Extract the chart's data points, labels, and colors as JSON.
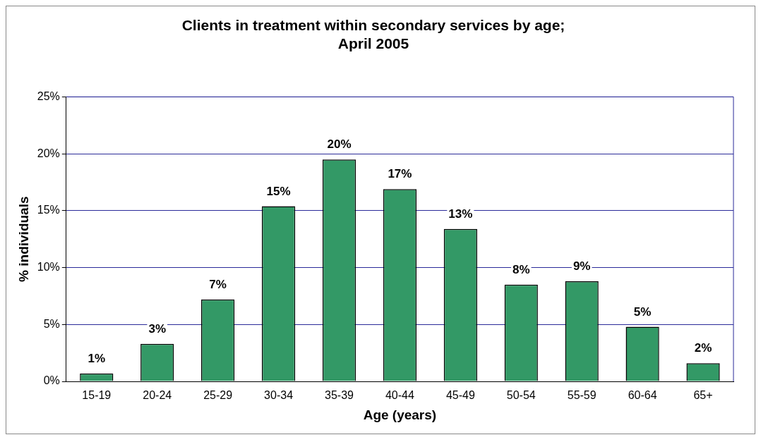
{
  "chart_data": {
    "type": "bar",
    "title": [
      "Clients in treatment within secondary services by age;",
      "April 2005"
    ],
    "xlabel": "Age (years)",
    "ylabel": "% individuals",
    "categories": [
      "15-19",
      "20-24",
      "25-29",
      "30-34",
      "35-39",
      "40-44",
      "45-49",
      "50-54",
      "55-59",
      "60-64",
      "65+"
    ],
    "values": [
      0.7,
      3.3,
      7.2,
      15.4,
      19.5,
      16.9,
      13.4,
      8.5,
      8.8,
      4.8,
      1.6
    ],
    "value_labels": [
      "1%",
      "3%",
      "7%",
      "15%",
      "20%",
      "17%",
      "13%",
      "8%",
      "9%",
      "5%",
      "2%"
    ],
    "color": "#339966",
    "ylim": [
      0,
      25
    ],
    "yticks": [
      {
        "value": 0,
        "label": "0%"
      },
      {
        "value": 5,
        "label": "5%"
      },
      {
        "value": 10,
        "label": "10%"
      },
      {
        "value": 15,
        "label": "15%"
      },
      {
        "value": 20,
        "label": "20%"
      },
      {
        "value": 25,
        "label": "25%"
      }
    ],
    "grid": "y",
    "legend": false
  }
}
